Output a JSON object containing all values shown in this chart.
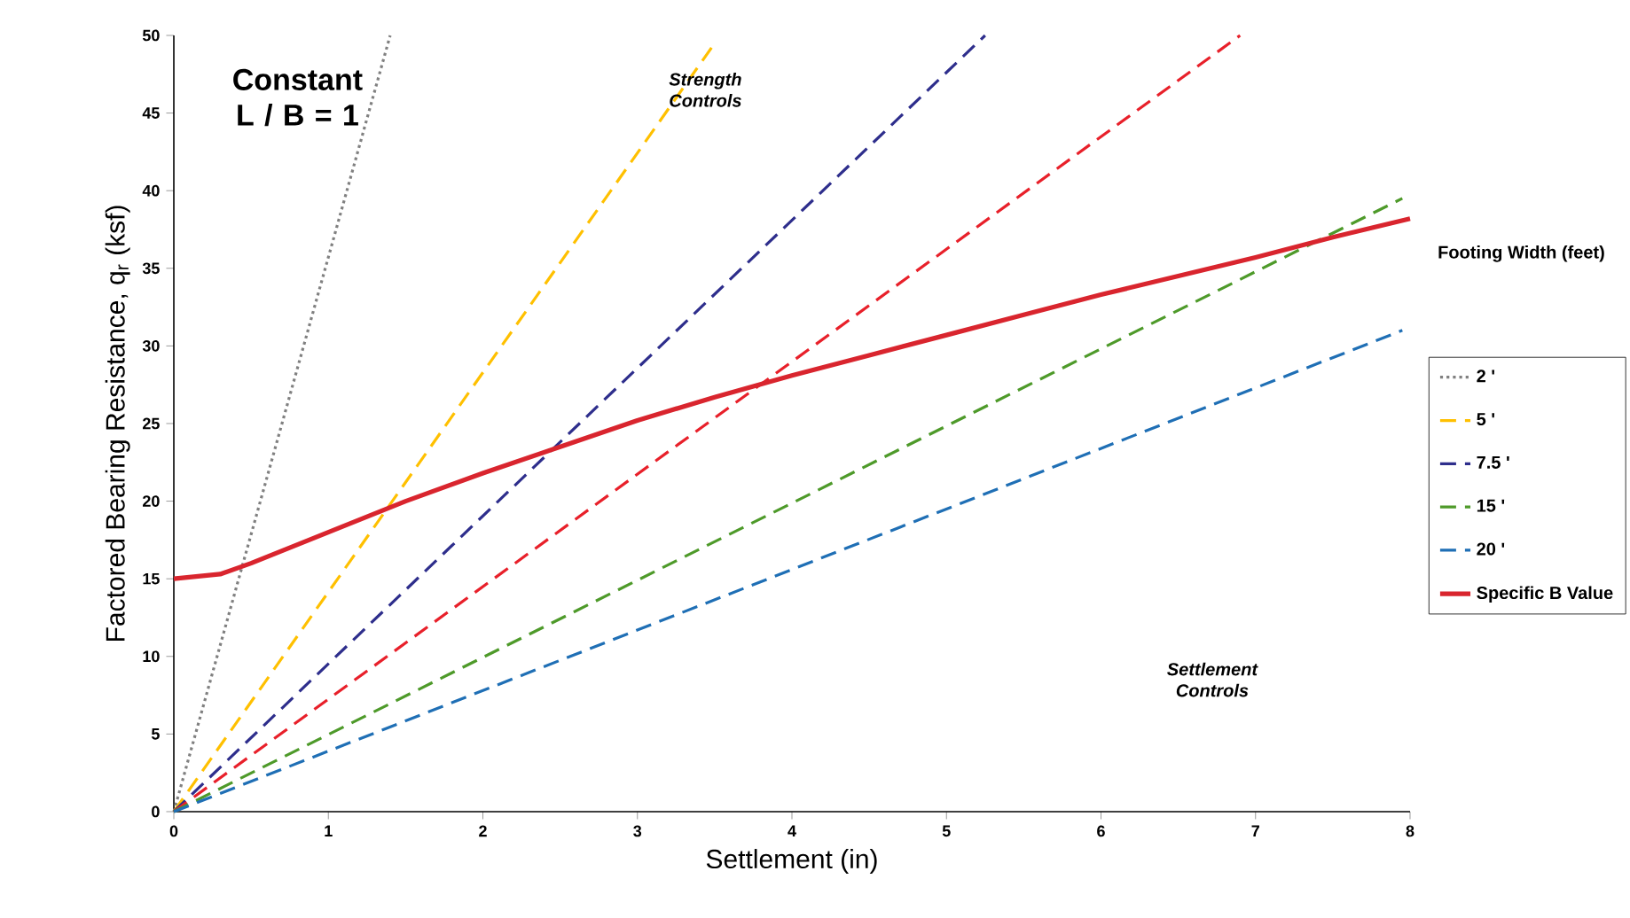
{
  "chart_data": {
    "type": "line",
    "xlabel": "Settlement (in)",
    "ylabel": "Factored Bearing Resistance, q$_{r}$ (ksf)",
    "legend_title": "Footing Width (feet)",
    "xlim": [
      0,
      8
    ],
    "ylim": [
      0,
      50
    ],
    "xticks": [
      0,
      1,
      2,
      3,
      4,
      5,
      6,
      7,
      8
    ],
    "yticks": [
      0,
      5,
      10,
      15,
      20,
      25,
      30,
      35,
      40,
      45,
      50
    ],
    "grid": false,
    "legend": "right",
    "marker": "none",
    "annotations": [
      "Constant L / B = 1",
      "Strength Controls",
      "Settlement Controls"
    ],
    "series": [
      {
        "name": "2 '",
        "color": "#808080",
        "line_style": "dotted",
        "x": [
          0,
          1.4
        ],
        "values": [
          0,
          50
        ]
      },
      {
        "name": "5 '",
        "color": "#ffc000",
        "line_style": "dashed",
        "x": [
          0,
          3.5
        ],
        "values": [
          0,
          49.5
        ]
      },
      {
        "name": "7.5 '",
        "color": "#2e2e8c",
        "line_style": "dashed",
        "x": [
          0,
          5.25
        ],
        "values": [
          0,
          50
        ]
      },
      {
        "color": "#e8202a",
        "line_style": "dashed",
        "x": [
          0,
          6.9
        ],
        "values": [
          0,
          50
        ]
      },
      {
        "name": "15 '",
        "color": "#4e9a2a",
        "line_style": "dashed",
        "x": [
          0,
          7.95
        ],
        "values": [
          0,
          39.5
        ]
      },
      {
        "name": "20 '",
        "color": "#1f6fb5",
        "line_style": "dashed",
        "x": [
          0,
          7.95
        ],
        "values": [
          0,
          31
        ]
      },
      {
        "name": "Specific B Value",
        "color": "#d9252e",
        "line_style": "solid",
        "x": [
          0,
          0.3,
          0.5,
          1,
          1.5,
          2,
          2.5,
          3,
          3.5,
          4,
          4.5,
          5,
          5.5,
          6,
          6.5,
          7,
          7.5,
          8
        ],
        "values": [
          15,
          15.3,
          16,
          18,
          20,
          21.8,
          23.5,
          25.2,
          26.7,
          28.1,
          29.4,
          30.7,
          32,
          33.3,
          34.5,
          35.7,
          37,
          38.2
        ]
      }
    ]
  }
}
